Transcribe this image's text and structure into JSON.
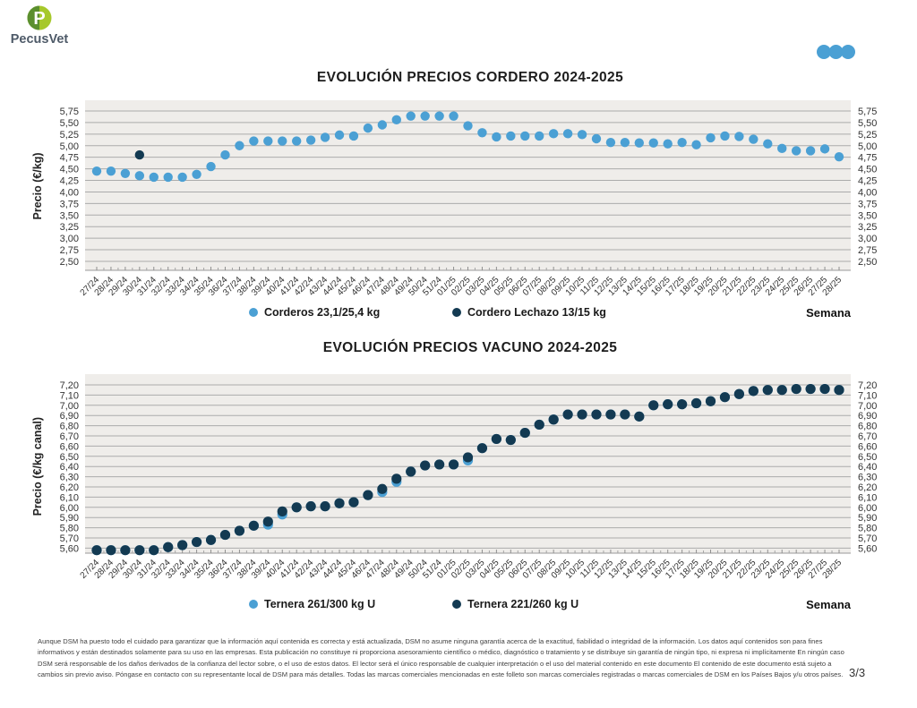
{
  "header": {
    "logo_text": "PecusVet",
    "logo_letter": "P"
  },
  "colors": {
    "accent_blue": "#4BA0D4",
    "navy": "#133A52",
    "logo_dark_green": "#5B8F2F",
    "logo_lime": "#A6C82B",
    "panel_bg": "#EFEDEA",
    "gridline": "#ABABAB"
  },
  "footer": {
    "disclaimer": "Aunque DSM ha puesto todo el cuidado para garantizar que la información aquí contenida es correcta y está actualizada, DSM no asume ninguna garantía acerca de la exactitud, fiabilidad o integridad de la información. Los datos aquí contenidos son para fines informativos y están destinados solamente para su uso en las empresas. Esta publicación no constituye ni proporciona asesoramiento científico o médico, diagnóstico o tratamiento y se distribuye sin garantía de ningún tipo, ni expresa ni implícitamente En ningún caso DSM será responsable de los daños derivados de la confianza del lector sobre, o el uso de estos datos. El lector será el único responsable de cualquier interpretación o el uso del material contenido en este documento El contenido de este documento está sujeto a cambios sin previo aviso. Póngase en contacto con su representante local de DSM para más detalles. Todas las marcas comerciales mencionadas en este folleto son marcas comerciales registradas o marcas comerciales de DSM en los Países Bajos y/u otros países.",
    "page_number": "3/3"
  },
  "chart_data": [
    {
      "type": "scatter",
      "title": "EVOLUCIÓN PRECIOS CORDERO 2024-2025",
      "ylabel": "Precio (€/kg)",
      "xlabel": "Semana",
      "ylim": [
        2.5,
        5.75
      ],
      "ystep": 0.25,
      "grid": true,
      "legend_position": "bottom",
      "categories": [
        "27/24",
        "28/24",
        "29/24",
        "30/24",
        "31/24",
        "32/24",
        "33/24",
        "34/24",
        "35/24",
        "36/24",
        "37/24",
        "38/24",
        "39/24",
        "40/24",
        "41/24",
        "42/24",
        "43/24",
        "44/24",
        "45/24",
        "46/24",
        "47/24",
        "48/24",
        "49/24",
        "50/24",
        "51/24",
        "01/25",
        "02/25",
        "03/25",
        "04/25",
        "05/25",
        "06/25",
        "07/25",
        "08/25",
        "09/25",
        "10/25",
        "11/25",
        "12/25",
        "13/25",
        "14/25",
        "15/25",
        "16/25",
        "17/25",
        "18/25",
        "19/25",
        "20/25",
        "21/25",
        "22/25",
        "23/25",
        "24/25",
        "25/25",
        "26/25",
        "27/25",
        "28/25"
      ],
      "series": [
        {
          "name": "Corderos 23,1/25,4 kg",
          "color": "#4BA0D4",
          "values": [
            4.45,
            4.45,
            4.4,
            4.35,
            4.32,
            4.32,
            4.32,
            4.38,
            4.55,
            4.8,
            5.0,
            5.1,
            5.1,
            5.1,
            5.1,
            5.12,
            5.18,
            5.23,
            5.21,
            5.38,
            5.45,
            5.56,
            5.64,
            5.64,
            5.64,
            5.64,
            5.43,
            5.28,
            5.19,
            5.21,
            5.21,
            5.21,
            5.26,
            5.26,
            5.24,
            5.15,
            5.07,
            5.07,
            5.06,
            5.06,
            5.04,
            5.07,
            5.02,
            5.17,
            5.21,
            5.2,
            5.14,
            5.04,
            4.94,
            4.89,
            4.89,
            4.93,
            4.76
          ]
        },
        {
          "name": "Cordero Lechazo 13/15 kg",
          "color": "#133A52",
          "values": [
            null,
            null,
            null,
            4.8,
            null,
            null,
            null,
            null,
            null,
            null,
            null,
            null,
            null,
            null,
            null,
            null,
            null,
            null,
            null,
            null,
            null,
            null,
            null,
            null,
            null,
            null,
            null,
            null,
            null,
            null,
            null,
            null,
            null,
            null,
            null,
            null,
            null,
            null,
            null,
            null,
            null,
            null,
            null,
            null,
            null,
            null,
            null,
            null,
            null,
            null,
            null,
            null,
            null
          ]
        }
      ]
    },
    {
      "type": "scatter",
      "title": "EVOLUCIÓN PRECIOS VACUNO 2024-2025",
      "ylabel": "Precio (€/kg canal)",
      "xlabel": "Semana",
      "ylim": [
        5.6,
        7.2
      ],
      "ystep": 0.1,
      "grid": true,
      "legend_position": "bottom",
      "categories": [
        "27/24",
        "28/24",
        "29/24",
        "30/24",
        "31/24",
        "32/24",
        "33/24",
        "34/24",
        "35/24",
        "36/24",
        "37/24",
        "38/24",
        "39/24",
        "40/24",
        "41/24",
        "42/24",
        "43/24",
        "44/24",
        "45/24",
        "46/24",
        "47/24",
        "48/24",
        "49/24",
        "50/24",
        "51/24",
        "01/25",
        "02/25",
        "03/25",
        "04/25",
        "05/25",
        "06/25",
        "07/25",
        "08/25",
        "09/25",
        "10/25",
        "11/25",
        "12/25",
        "13/25",
        "14/25",
        "15/25",
        "16/25",
        "17/25",
        "18/25",
        "19/25",
        "20/25",
        "21/25",
        "22/25",
        "23/25",
        "24/25",
        "25/25",
        "26/25",
        "27/25",
        "28/25"
      ],
      "series": [
        {
          "name": "Ternera 261/300 kg U",
          "color": "#4BA0D4",
          "values": [
            5.58,
            5.58,
            5.58,
            5.58,
            5.58,
            5.61,
            5.63,
            5.66,
            5.68,
            5.73,
            5.77,
            5.82,
            5.83,
            5.93,
            6.0,
            6.01,
            6.01,
            6.04,
            6.05,
            6.12,
            6.15,
            6.25,
            6.35,
            6.41,
            6.42,
            6.42,
            6.46,
            6.58,
            6.67,
            6.66,
            6.73,
            6.81,
            6.86,
            6.91,
            6.91,
            6.91,
            6.91,
            6.91,
            6.89,
            7.0,
            7.01,
            7.01,
            7.02,
            7.04,
            7.08,
            7.11,
            7.14,
            7.15,
            7.15,
            7.16,
            7.16,
            7.16,
            7.15
          ]
        },
        {
          "name": "Ternera 221/260 kg U",
          "color": "#133A52",
          "values": [
            5.58,
            5.58,
            5.58,
            5.58,
            5.58,
            5.61,
            5.63,
            5.66,
            5.68,
            5.73,
            5.77,
            5.82,
            5.86,
            5.96,
            6.0,
            6.01,
            6.01,
            6.04,
            6.05,
            6.12,
            6.18,
            6.28,
            6.35,
            6.41,
            6.42,
            6.42,
            6.49,
            6.58,
            6.67,
            6.66,
            6.73,
            6.81,
            6.86,
            6.91,
            6.91,
            6.91,
            6.91,
            6.91,
            6.89,
            7.0,
            7.01,
            7.01,
            7.02,
            7.04,
            7.08,
            7.11,
            7.14,
            7.15,
            7.15,
            7.16,
            7.16,
            7.16,
            7.15
          ]
        }
      ]
    }
  ]
}
